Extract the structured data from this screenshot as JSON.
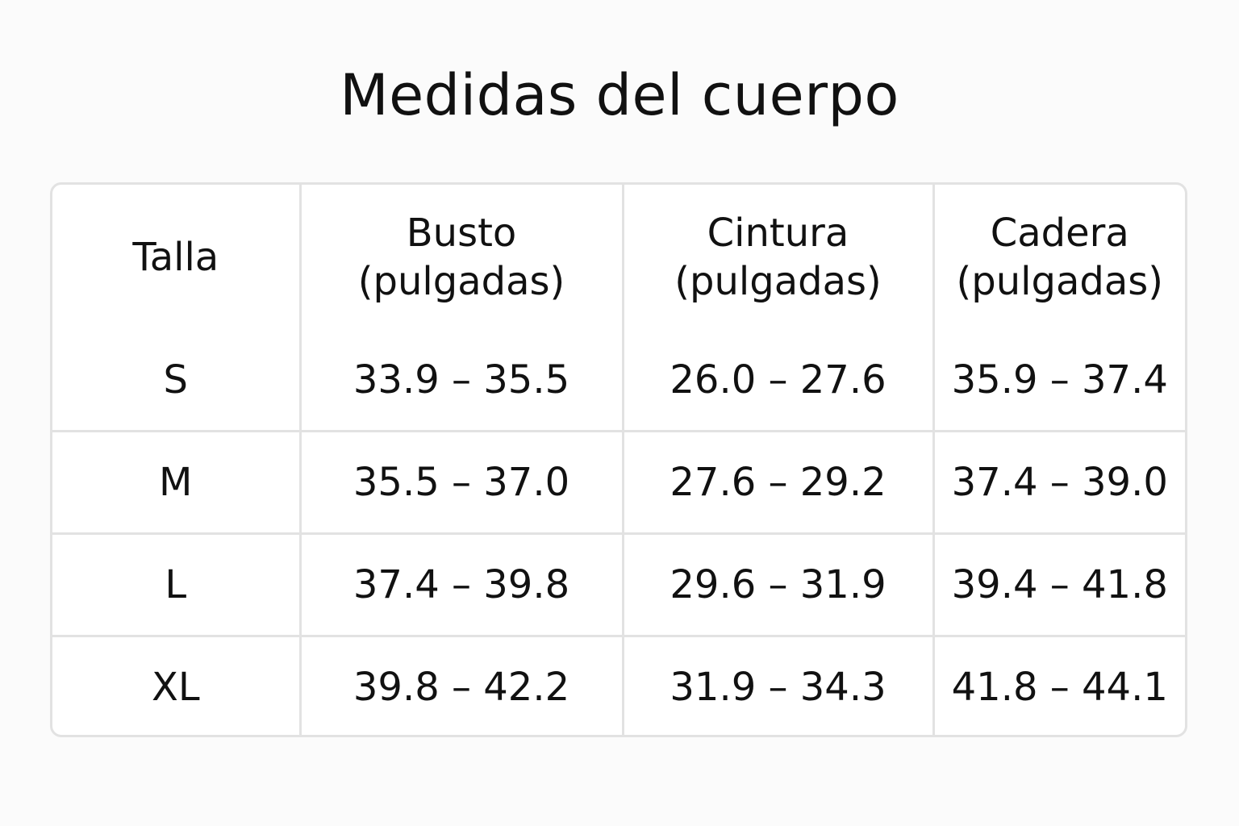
{
  "header": {
    "title": "Medidas del cuerpo"
  },
  "table": {
    "columns": [
      {
        "name": "Talla"
      },
      {
        "name": "Busto",
        "unit": "(pulgadas)"
      },
      {
        "name": "Cintura",
        "unit": "(pulgadas)"
      },
      {
        "name": "Cadera",
        "unit": "(pulgadas)"
      }
    ],
    "rows": [
      [
        "S",
        "33.9 – 35.5",
        "26.0 – 27.6",
        "35.9 – 37.4"
      ],
      [
        "M",
        "35.5 – 37.0",
        "27.6 – 29.2",
        "37.4 – 39.0"
      ],
      [
        "L",
        "37.4 – 39.8",
        "29.6 – 31.9",
        "39.4 – 41.8"
      ],
      [
        "XL",
        "39.8 – 42.2",
        "31.9 – 34.3",
        "41.8 – 44.1"
      ]
    ]
  }
}
